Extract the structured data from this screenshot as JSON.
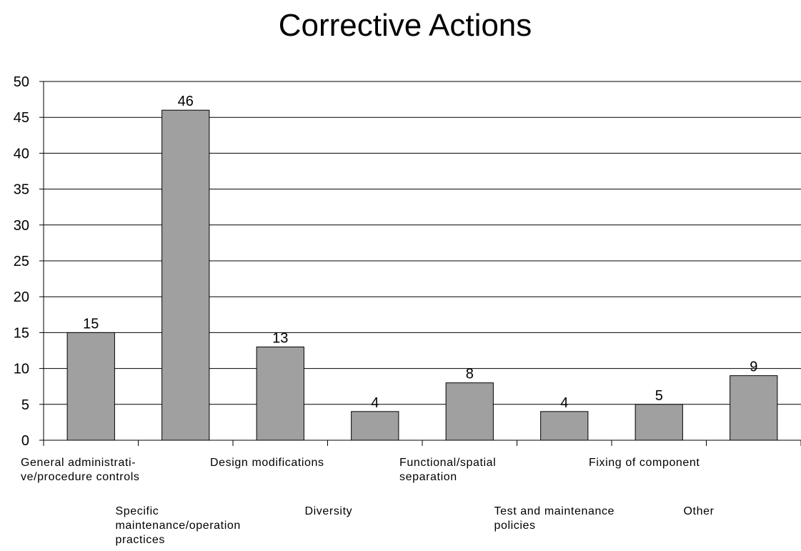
{
  "chart_data": {
    "type": "bar",
    "title": "Corrective Actions",
    "xlabel": "",
    "ylabel": "",
    "ylim": [
      0,
      50
    ],
    "yticks": [
      0,
      5,
      10,
      15,
      20,
      25,
      30,
      35,
      40,
      45,
      50
    ],
    "grid": true,
    "legend": "none",
    "bar_color": "#a0a0a0",
    "categories": [
      "General administrati-\nve/procedure controls",
      "Specific\nmaintenance/operation\npractices",
      "Design modifications",
      "Diversity",
      "Functional/spatial\nseparation",
      "Test and maintenance\npolicies",
      "Fixing of component",
      "Other"
    ],
    "values": [
      15,
      46,
      13,
      4,
      8,
      4,
      5,
      9
    ],
    "data_labels": [
      "15",
      "46",
      "13",
      "4",
      "8",
      "4",
      "5",
      "9"
    ]
  }
}
